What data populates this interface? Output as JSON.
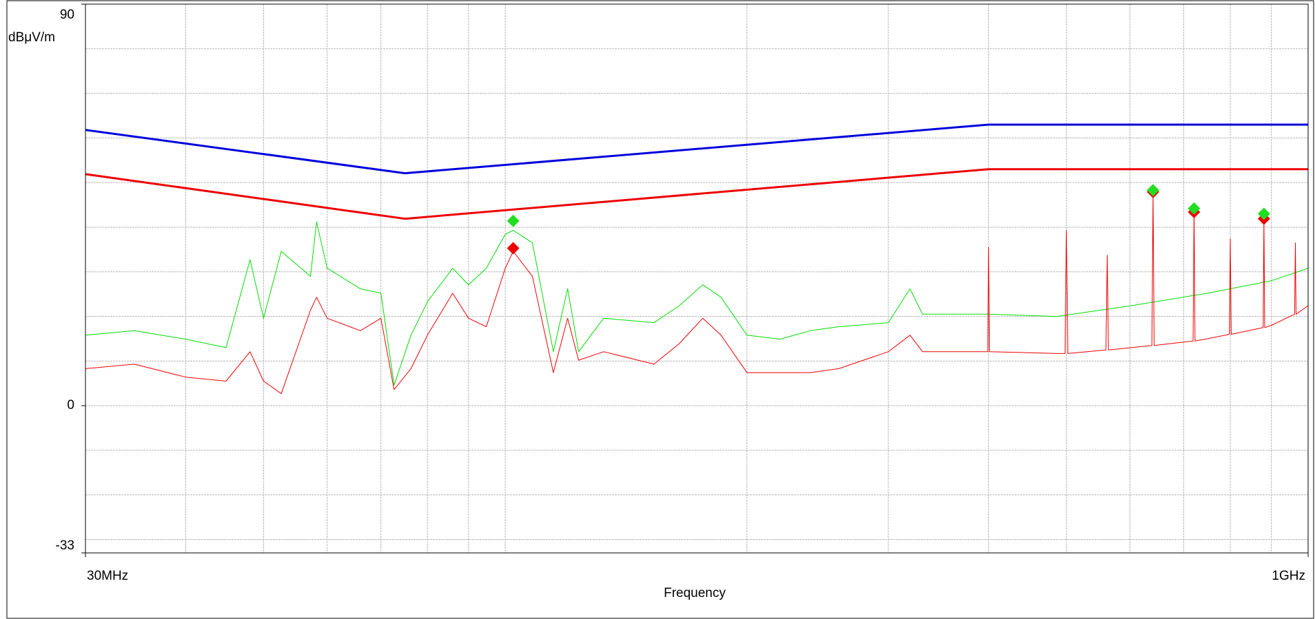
{
  "chart_data": {
    "type": "line",
    "x_label": "Frequency",
    "y_label": "dBμV/m",
    "xscale": "log",
    "xlim": [
      30,
      1000
    ],
    "xticks": [
      {
        "value": 30,
        "label": "30MHz"
      },
      {
        "value": 1000,
        "label": "1GHz"
      }
    ],
    "xgrid": [
      40,
      50,
      60,
      70,
      80,
      90,
      100,
      200,
      300,
      400,
      500,
      600,
      700,
      800,
      900
    ],
    "ylim": [
      -33,
      90
    ],
    "yticks": [
      90,
      0,
      -33
    ],
    "ygrid": [
      80,
      70,
      60,
      50,
      40,
      30,
      20,
      10,
      0,
      -10,
      -20,
      -30
    ],
    "grid": true,
    "series": [
      {
        "color": "#0000dd",
        "width": 3,
        "x": [
          30,
          75,
          400,
          1000
        ],
        "values": [
          61.8,
          52.1,
          63.0,
          63.0
        ]
      },
      {
        "color": "#ee0000",
        "width": 3,
        "x": [
          30,
          75,
          400,
          1000
        ],
        "values": [
          51.9,
          41.9,
          53.0,
          53.0
        ]
      },
      {
        "color": "#00dd00",
        "width": 1,
        "x": [
          30,
          34.5,
          40,
          44.9,
          48.1,
          50,
          52.6,
          57.2,
          58.2,
          60,
          66,
          70,
          72.7,
          76.3,
          80,
          86,
          90,
          94.7,
          100,
          102.3,
          108.1,
          114.8,
          119.6,
          123.4,
          132.6,
          153.2,
          164.7,
          176.2,
          185.7,
          200,
          219.9,
          239.7,
          260.2,
          300,
          319.3,
          330.9,
          400,
          486,
          602,
          749,
          900,
          1000
        ],
        "values": [
          15.8,
          16.8,
          14.9,
          13.0,
          32.7,
          19.6,
          34.6,
          29.0,
          41.2,
          30.8,
          26.2,
          25.2,
          4.6,
          15.8,
          23.3,
          30.8,
          27.1,
          30.8,
          38.4,
          39.3,
          36.5,
          12.1,
          26.2,
          12.1,
          19.6,
          18.6,
          22.4,
          27.1,
          24.3,
          15.8,
          14.9,
          16.8,
          17.7,
          18.6,
          26.2,
          20.5,
          20.5,
          20.0,
          22.4,
          25.2,
          28.0,
          30.8
        ]
      },
      {
        "color": "#ee0000",
        "width": 1,
        "x": [
          30,
          34.5,
          40,
          44.9,
          48.1,
          50,
          52.6,
          57.2,
          58.2,
          60,
          66,
          70,
          72.7,
          76.3,
          80,
          86,
          90,
          94.7,
          100,
          102.3,
          108.1,
          114.8,
          119.6,
          123.4,
          132.6,
          153.2,
          164.7,
          176.2,
          185.7,
          200,
          219.9,
          239.7,
          260.2,
          300,
          319.3,
          330.9,
          399,
          400,
          401,
          486,
          498,
          500,
          502,
          560,
          562,
          564,
          602,
          639,
          641,
          643,
          719,
          721,
          723,
          749,
          798,
          800,
          802,
          879,
          881,
          883,
          900,
          962,
          964,
          966,
          1000
        ],
        "values": [
          8.3,
          9.3,
          6.4,
          5.5,
          12.1,
          5.5,
          2.7,
          21.4,
          24.3,
          19.6,
          16.8,
          19.6,
          3.6,
          8.3,
          15.8,
          25.2,
          19.6,
          17.7,
          30.8,
          34.6,
          29.0,
          7.4,
          19.6,
          10.2,
          12.1,
          9.3,
          13.9,
          19.6,
          15.8,
          7.4,
          7.4,
          7.4,
          8.3,
          12.1,
          15.8,
          12.1,
          12.1,
          35.5,
          12.1,
          11.7,
          11.7,
          39.3,
          11.7,
          12.5,
          33.7,
          12.5,
          13.0,
          13.5,
          47.7,
          13.5,
          14.5,
          44.0,
          14.5,
          15.0,
          16.0,
          37.4,
          16.0,
          17.5,
          42.1,
          17.5,
          18.0,
          20.5,
          36.5,
          20.5,
          22.4
        ]
      },
      {
        "color": "#ee0000",
        "marker": "diamond",
        "x": [
          102.3,
          641,
          721,
          881
        ],
        "values": [
          35.3,
          47.9,
          43.4,
          41.9
        ]
      },
      {
        "color": "#22dd22",
        "marker": "diamond",
        "x": [
          102.3,
          641,
          721,
          881
        ],
        "values": [
          41.4,
          48.3,
          44.2,
          43.0
        ]
      }
    ]
  }
}
